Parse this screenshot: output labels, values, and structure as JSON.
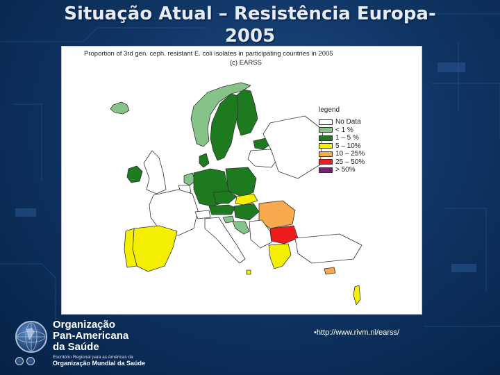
{
  "slide": {
    "title_line1": "Situação Atual – Resistência Europa-",
    "title_line2": "2005"
  },
  "map": {
    "title": "Proportion of 3rd gen. ceph. resistant E. coli isolates in participating countries in 2005",
    "subtitle": "(c) EARSS",
    "legend_title": "legend",
    "legend": [
      {
        "label": "No Data",
        "color": "#ffffff"
      },
      {
        "label": "< 1 %",
        "color": "#86c388"
      },
      {
        "label": "1 – 5 %",
        "color": "#1e7a1e"
      },
      {
        "label": "5 – 10%",
        "color": "#f4ee00"
      },
      {
        "label": "10 – 25%",
        "color": "#f7a94e"
      },
      {
        "label": "25 – 50%",
        "color": "#ee1c1c"
      },
      {
        "label": "> 50%",
        "color": "#7a1f7a"
      }
    ],
    "countries": [
      {
        "name": "Iceland",
        "category": "< 1 %"
      },
      {
        "name": "Norway",
        "category": "< 1 %"
      },
      {
        "name": "Sweden",
        "category": "1 – 5 %"
      },
      {
        "name": "Finland",
        "category": "1 – 5 %"
      },
      {
        "name": "Estonia",
        "category": "1 – 5 %"
      },
      {
        "name": "Ireland",
        "category": "1 – 5 %"
      },
      {
        "name": "United Kingdom",
        "category": "No Data"
      },
      {
        "name": "Denmark",
        "category": "1 – 5 %"
      },
      {
        "name": "Netherlands",
        "category": "< 1 %"
      },
      {
        "name": "Germany",
        "category": "1 – 5 %"
      },
      {
        "name": "Poland",
        "category": "1 – 5 %"
      },
      {
        "name": "Czech Republic",
        "category": "1 – 5 %"
      },
      {
        "name": "Austria",
        "category": "1 – 5 %"
      },
      {
        "name": "Hungary",
        "category": "1 – 5 %"
      },
      {
        "name": "Slovakia",
        "category": "5 – 10%"
      },
      {
        "name": "Slovenia",
        "category": "< 1 %"
      },
      {
        "name": "Croatia",
        "category": "< 1 %"
      },
      {
        "name": "Romania",
        "category": "10 – 25%"
      },
      {
        "name": "Bulgaria",
        "category": "25 – 50%"
      },
      {
        "name": "Spain",
        "category": "5 – 10%"
      },
      {
        "name": "Portugal",
        "category": "5 – 10%"
      },
      {
        "name": "Greece",
        "category": "5 – 10%"
      },
      {
        "name": "Malta",
        "category": "5 – 10%"
      },
      {
        "name": "Cyprus",
        "category": "10 – 25%"
      },
      {
        "name": "Israel",
        "category": "5 – 10%"
      }
    ]
  },
  "logo": {
    "line1": "Organização",
    "line2": "Pan-Americana",
    "line3": "da Saúde",
    "sub1": "Escritório Regional para as Américas da",
    "sub2": "Organização Mundial da Saúde"
  },
  "footer": {
    "link": "•http://www.rivm.nl/earss/"
  },
  "colors": {
    "background": "#0f3564",
    "no_data": "#ffffff",
    "lt1": "#86c388",
    "p1_5": "#1e7a1e",
    "p5_10": "#f4ee00",
    "p10_25": "#f7a94e",
    "p25_50": "#ee1c1c",
    "gt50": "#7a1f7a"
  }
}
